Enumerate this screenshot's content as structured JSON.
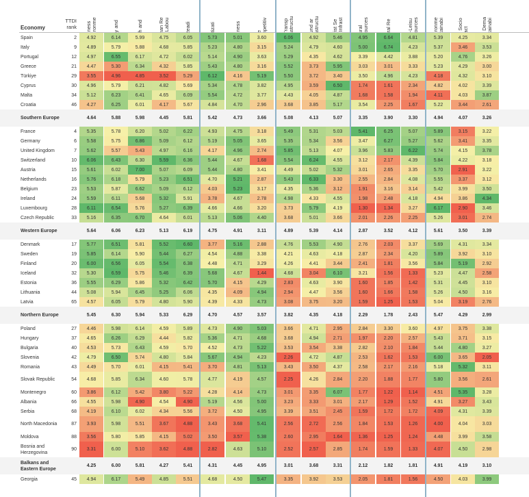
{
  "chart_data": {
    "type": "table",
    "columns": [
      {
        "key": "bus",
        "label": "Business\nEnvironme"
      },
      {
        "key": "saf",
        "label": "Safety and"
      },
      {
        "key": "hea",
        "label": "Health and"
      },
      {
        "key": "hum",
        "label": "Human Re\nand Labou"
      },
      {
        "key": "ict",
        "label": "ICT Readi"
      },
      {
        "key": "pri",
        "label": "Prioritizati"
      },
      {
        "key": "ope",
        "label": "Openness"
      },
      {
        "key": "prc",
        "label": "Price\nCompetitiv"
      },
      {
        "key": "air",
        "label": "Air Transp\nInfrastructu"
      },
      {
        "key": "gro",
        "label": "Ground ar\nInfrastructu"
      },
      {
        "key": "tou",
        "label": "Tourist Se\nand Infrast"
      },
      {
        "key": "nat",
        "label": "Natural\nResources"
      },
      {
        "key": "cul",
        "label": "Cultural Re"
      },
      {
        "key": "nonl",
        "label": "Non-Leisu\nResources"
      },
      {
        "key": "env",
        "label": "Environme\nSustainabi"
      },
      {
        "key": "tts",
        "label": "T&T Socio\nImpact"
      },
      {
        "key": "ttd",
        "label": "T&T Dema\nSustainabi"
      }
    ],
    "header": {
      "economy": "Economy",
      "rank": "TTDI\nrank"
    },
    "rows": [
      {
        "name": "Spain",
        "rank": "2",
        "values": [
          "4.92",
          "6.14",
          "5.99",
          "4.75",
          "6.05",
          "5.73",
          "5.01",
          "3.60",
          "6.06",
          "4.92",
          "5.46",
          "4.95",
          "6.64",
          "4.81",
          "5.39",
          "4.25",
          "3.34"
        ]
      },
      {
        "name": "Italy",
        "rank": "9",
        "values": [
          "4.89",
          "5.79",
          "5.88",
          "4.68",
          "5.85",
          "5.23",
          "4.80",
          "3.15",
          "5.24",
          "4.79",
          "4.60",
          "5.00",
          "6.74",
          "4.23",
          "5.37",
          "3.46",
          "3.53"
        ]
      },
      {
        "name": "Portugal",
        "rank": "12",
        "values": [
          "4.97",
          "6.55",
          "6.17",
          "4.72",
          "6.02",
          "5.14",
          "4.90",
          "3.63",
          "5.29",
          "4.35",
          "4.62",
          "3.39",
          "4.42",
          "3.88",
          "5.20",
          "4.76",
          "3.26"
        ]
      },
      {
        "name": "Greece",
        "rank": "21",
        "values": [
          "4.47",
          "5.30",
          "6.34",
          "4.32",
          "5.85",
          "5.43",
          "4.80",
          "3.16",
          "5.52",
          "3.73",
          "5.95",
          "3.03",
          "3.01",
          "3.33",
          "5.23",
          "4.29",
          "3.00"
        ]
      },
      {
        "name": "Türkiye",
        "rank": "29",
        "values": [
          "3.55",
          "4.96",
          "4.85",
          "3.52",
          "5.29",
          "6.12",
          "4.16",
          "5.19",
          "5.50",
          "3.72",
          "3.40",
          "3.50",
          "4.96",
          "4.23",
          "4.18",
          "4.32",
          "3.10"
        ]
      },
      {
        "name": "Cyprus",
        "rank": "30",
        "values": [
          "4.96",
          "5.79",
          "6.21",
          "4.82",
          "5.69",
          "5.34",
          "4.78",
          "3.82",
          "4.95",
          "3.59",
          "6.50",
          "1.74",
          "1.61",
          "2.34",
          "4.82",
          "4.02",
          "3.39"
        ]
      },
      {
        "name": "Malta",
        "rank": "34",
        "values": [
          "5.12",
          "6.23",
          "6.41",
          "4.65",
          "6.09",
          "5.54",
          "4.72",
          "3.77",
          "4.43",
          "4.05",
          "4.87",
          "1.68",
          "1.58",
          "1.94",
          "4.11",
          "4.03",
          "3.87"
        ]
      },
      {
        "name": "Croatia",
        "rank": "46",
        "values": [
          "4.27",
          "6.25",
          "6.01",
          "4.17",
          "5.67",
          "4.84",
          "4.70",
          "2.96",
          "3.68",
          "3.85",
          "5.17",
          "3.54",
          "2.25",
          "1.67",
          "5.22",
          "3.44",
          "2.61"
        ]
      },
      {
        "name": "Southern Europe",
        "rank": "",
        "region": true,
        "values": [
          "4.64",
          "5.88",
          "5.98",
          "4.45",
          "5.81",
          "5.42",
          "4.73",
          "3.66",
          "5.08",
          "4.13",
          "5.07",
          "3.35",
          "3.90",
          "3.30",
          "4.94",
          "4.07",
          "3.26"
        ]
      },
      {
        "name": "France",
        "rank": "4",
        "values": [
          "5.35",
          "5.78",
          "6.20",
          "5.02",
          "6.22",
          "4.93",
          "4.75",
          "3.18",
          "5.49",
          "5.31",
          "5.03",
          "5.41",
          "6.25",
          "5.07",
          "5.89",
          "3.15",
          "3.22"
        ]
      },
      {
        "name": "Germany",
        "rank": "6",
        "values": [
          "5.58",
          "5.75",
          "6.86",
          "5.09",
          "6.12",
          "5.19",
          "5.05",
          "3.65",
          "5.35",
          "5.34",
          "3.56",
          "3.47",
          "6.27",
          "5.27",
          "5.62",
          "3.41",
          "3.35"
        ]
      },
      {
        "name": "United Kingdom",
        "rank": "7",
        "values": [
          "5.62",
          "5.57",
          "5.43",
          "4.97",
          "6.16",
          "4.17",
          "4.96",
          "2.74",
          "5.85",
          "5.13",
          "4.07",
          "3.96",
          "5.83",
          "6.22",
          "5.74",
          "4.15",
          "3.78"
        ]
      },
      {
        "name": "Switzerland",
        "rank": "10",
        "values": [
          "6.06",
          "6.43",
          "6.30",
          "5.59",
          "6.36",
          "5.44",
          "4.67",
          "1.68",
          "5.54",
          "6.24",
          "4.55",
          "3.12",
          "2.17",
          "4.39",
          "5.84",
          "4.22",
          "3.18"
        ]
      },
      {
        "name": "Austria",
        "rank": "15",
        "values": [
          "5.61",
          "6.02",
          "7.00",
          "5.07",
          "6.09",
          "5.44",
          "4.80",
          "3.41",
          "4.49",
          "5.02",
          "5.32",
          "3.01",
          "2.65",
          "3.35",
          "5.70",
          "2.91",
          "3.22"
        ]
      },
      {
        "name": "Netherlands",
        "rank": "16",
        "values": [
          "5.76",
          "6.18",
          "5.79",
          "5.23",
          "6.51",
          "4.70",
          "5.21",
          "2.87",
          "5.43",
          "6.33",
          "3.30",
          "2.55",
          "2.84",
          "4.08",
          "5.55",
          "3.37",
          "3.12"
        ]
      },
      {
        "name": "Belgium",
        "rank": "23",
        "values": [
          "5.53",
          "5.87",
          "6.62",
          "5.09",
          "6.12",
          "4.03",
          "5.23",
          "3.17",
          "4.35",
          "5.36",
          "3.12",
          "1.91",
          "3.16",
          "3.14",
          "5.42",
          "3.99",
          "3.50"
        ]
      },
      {
        "name": "Ireland",
        "rank": "24",
        "values": [
          "5.59",
          "6.11",
          "5.68",
          "5.32",
          "5.91",
          "3.78",
          "4.67",
          "2.78",
          "4.98",
          "4.33",
          "4.55",
          "1.98",
          "2.48",
          "4.18",
          "4.94",
          "3.86",
          "4.34"
        ]
      },
      {
        "name": "Luxembourg",
        "rank": "28",
        "values": [
          "6.11",
          "6.54",
          "5.76",
          "5.27",
          "6.39",
          "4.66",
          "4.66",
          "3.20",
          "3.73",
          "5.79",
          "4.19",
          "1.30",
          "1.34",
          "3.27",
          "6.17",
          "2.90",
          "3.46"
        ]
      },
      {
        "name": "Czech Republic",
        "rank": "33",
        "values": [
          "5.16",
          "6.35",
          "6.70",
          "4.64",
          "6.01",
          "5.13",
          "5.06",
          "4.40",
          "3.68",
          "5.01",
          "3.66",
          "2.01",
          "2.26",
          "2.25",
          "5.26",
          "3.01",
          "2.74"
        ]
      },
      {
        "name": "Western Europe",
        "rank": "",
        "region": true,
        "values": [
          "5.64",
          "6.06",
          "6.23",
          "5.13",
          "6.19",
          "4.75",
          "4.91",
          "3.11",
          "4.89",
          "5.39",
          "4.14",
          "2.87",
          "3.52",
          "4.12",
          "5.61",
          "3.50",
          "3.39"
        ]
      },
      {
        "name": "Denmark",
        "rank": "17",
        "values": [
          "5.77",
          "6.51",
          "5.81",
          "5.52",
          "6.60",
          "3.77",
          "5.16",
          "2.88",
          "4.76",
          "5.53",
          "4.90",
          "2.76",
          "2.03",
          "3.37",
          "5.69",
          "4.31",
          "3.34"
        ]
      },
      {
        "name": "Sweden",
        "rank": "19",
        "values": [
          "5.85",
          "6.14",
          "5.90",
          "5.44",
          "6.27",
          "4.54",
          "4.88",
          "3.38",
          "4.21",
          "4.63",
          "4.18",
          "2.87",
          "2.34",
          "4.20",
          "5.89",
          "3.92",
          "3.10"
        ]
      },
      {
        "name": "Finland",
        "rank": "20",
        "values": [
          "6.00",
          "6.56",
          "6.05",
          "5.54",
          "6.38",
          "4.48",
          "4.71",
          "3.29",
          "4.26",
          "4.41",
          "3.44",
          "2.41",
          "1.81",
          "3.56",
          "5.84",
          "5.19",
          "2.92"
        ]
      },
      {
        "name": "Iceland",
        "rank": "32",
        "values": [
          "5.30",
          "6.59",
          "5.75",
          "5.46",
          "6.39",
          "5.68",
          "4.67",
          "1.44",
          "4.68",
          "3.04",
          "6.10",
          "3.21",
          "1.56",
          "1.33",
          "5.23",
          "4.47",
          "2.58"
        ]
      },
      {
        "name": "Estonia",
        "rank": "36",
        "values": [
          "5.55",
          "6.29",
          "5.86",
          "5.32",
          "6.42",
          "5.70",
          "4.15",
          "4.29",
          "2.83",
          "4.63",
          "3.90",
          "1.60",
          "1.85",
          "1.42",
          "5.31",
          "4.45",
          "3.10"
        ]
      },
      {
        "name": "Lithuania",
        "rank": "44",
        "values": [
          "5.08",
          "5.94",
          "6.45",
          "5.25",
          "6.06",
          "4.35",
          "4.09",
          "4.94",
          "2.94",
          "4.47",
          "3.56",
          "1.60",
          "1.66",
          "1.58",
          "5.26",
          "4.50",
          "3.16"
        ]
      },
      {
        "name": "Latvia",
        "rank": "65",
        "values": [
          "4.57",
          "6.05",
          "5.79",
          "4.80",
          "5.90",
          "4.39",
          "4.33",
          "4.73",
          "3.08",
          "3.75",
          "3.20",
          "1.59",
          "1.25",
          "1.53",
          "5.04",
          "3.19",
          "2.76"
        ]
      },
      {
        "name": "Northern Europe",
        "rank": "",
        "region": true,
        "values": [
          "5.45",
          "6.30",
          "5.94",
          "5.33",
          "6.29",
          "4.70",
          "4.57",
          "3.57",
          "3.82",
          "4.35",
          "4.18",
          "2.29",
          "1.78",
          "2.43",
          "5.47",
          "4.29",
          "2.99"
        ]
      },
      {
        "name": "Poland",
        "rank": "27",
        "values": [
          "4.46",
          "5.98",
          "6.14",
          "4.59",
          "5.89",
          "4.73",
          "4.90",
          "5.03",
          "3.66",
          "4.71",
          "2.95",
          "2.84",
          "3.30",
          "3.60",
          "4.97",
          "3.75",
          "3.38"
        ]
      },
      {
        "name": "Hungary",
        "rank": "37",
        "values": [
          "4.65",
          "6.26",
          "6.29",
          "4.44",
          "5.82",
          "5.36",
          "4.71",
          "4.68",
          "3.68",
          "4.94",
          "2.71",
          "1.97",
          "2.20",
          "2.57",
          "5.43",
          "3.71",
          "3.15"
        ]
      },
      {
        "name": "Bulgaria",
        "rank": "40",
        "values": [
          "4.53",
          "5.73",
          "6.43",
          "4.59",
          "5.70",
          "4.52",
          "4.73",
          "5.22",
          "3.53",
          "3.54",
          "3.38",
          "2.82",
          "2.10",
          "1.84",
          "5.44",
          "4.80",
          "3.27"
        ]
      },
      {
        "name": "Slovenia",
        "rank": "42",
        "values": [
          "4.79",
          "6.50",
          "5.74",
          "4.80",
          "5.84",
          "5.67",
          "4.94",
          "4.23",
          "2.26",
          "4.72",
          "4.87",
          "2.53",
          "1.62",
          "1.53",
          "6.00",
          "3.65",
          "2.05"
        ]
      },
      {
        "name": "Romania",
        "rank": "43",
        "values": [
          "4.49",
          "5.70",
          "6.01",
          "4.15",
          "5.41",
          "3.70",
          "4.81",
          "5.13",
          "3.43",
          "3.50",
          "4.37",
          "2.58",
          "2.17",
          "2.16",
          "5.18",
          "5.32",
          "3.11"
        ]
      },
      {
        "name": "Slovak Republic",
        "rank": "54",
        "values": [
          "4.68",
          "5.85",
          "6.34",
          "4.60",
          "5.78",
          "4.77",
          "4.19",
          "4.57",
          "2.25",
          "4.26",
          "2.84",
          "2.20",
          "1.88",
          "1.77",
          "5.80",
          "3.56",
          "2.61"
        ]
      },
      {
        "name": "Montenegro",
        "rank": "60",
        "values": [
          "3.86",
          "6.12",
          "5.42",
          "3.80",
          "5.22",
          "4.28",
          "4.14",
          "4.73",
          "3.01",
          "3.35",
          "6.07",
          "1.77",
          "1.22",
          "1.14",
          "4.51",
          "5.35",
          "3.28"
        ]
      },
      {
        "name": "Albania",
        "rank": "66",
        "values": [
          "4.55",
          "5.98",
          "4.90",
          "4.54",
          "4.90",
          "5.19",
          "4.56",
          "5.00",
          "3.23",
          "3.33",
          "3.01",
          "2.17",
          "1.29",
          "1.52",
          "4.91",
          "3.27",
          "3.43"
        ]
      },
      {
        "name": "Serbia",
        "rank": "68",
        "values": [
          "4.19",
          "6.10",
          "6.02",
          "4.34",
          "5.56",
          "3.72",
          "4.50",
          "4.95",
          "3.39",
          "3.51",
          "2.45",
          "1.59",
          "1.72",
          "1.72",
          "4.09",
          "4.31",
          "3.39"
        ]
      },
      {
        "name": "North Macedonia",
        "rank": "87",
        "values": [
          "3.93",
          "5.98",
          "5.51",
          "3.67",
          "4.88",
          "3.43",
          "3.68",
          "5.41",
          "2.56",
          "2.72",
          "2.56",
          "1.84",
          "1.53",
          "1.26",
          "4.00",
          "4.04",
          "3.03"
        ]
      },
      {
        "name": "Moldova",
        "rank": "88",
        "values": [
          "3.56",
          "5.80",
          "5.85",
          "4.15",
          "5.02",
          "3.50",
          "3.57",
          "5.38",
          "2.60",
          "2.95",
          "1.64",
          "1.36",
          "1.25",
          "1.24",
          "4.48",
          "3.99",
          "3.58"
        ]
      },
      {
        "name": "Bosnia and Herzegovina",
        "rank": "90",
        "values": [
          "3.31",
          "6.00",
          "5.10",
          "3.62",
          "4.88",
          "2.82",
          "4.63",
          "5.10",
          "2.52",
          "2.57",
          "2.85",
          "1.74",
          "1.59",
          "1.33",
          "4.07",
          "4.50",
          "2.98"
        ]
      },
      {
        "name": "Balkans and Eastern Europe",
        "rank": "",
        "region": true,
        "values": [
          "4.25",
          "6.00",
          "5.81",
          "4.27",
          "5.41",
          "4.31",
          "4.45",
          "4.95",
          "3.01",
          "3.68",
          "3.31",
          "2.12",
          "1.82",
          "1.81",
          "4.91",
          "4.19",
          "3.10"
        ]
      },
      {
        "name": "Georgia",
        "rank": "45",
        "values": [
          "4.94",
          "6.17",
          "5.49",
          "4.85",
          "5.51",
          "4.68",
          "4.50",
          "5.47",
          "3.35",
          "3.92",
          "3.53",
          "2.05",
          "1.81",
          "1.56",
          "4.50",
          "4.03",
          "3.99"
        ]
      }
    ],
    "colors": {
      "low": "#f0604d",
      "mid": "#f7f0a8",
      "high": "#5fb86a",
      "separator": "#8fb3c8"
    }
  }
}
